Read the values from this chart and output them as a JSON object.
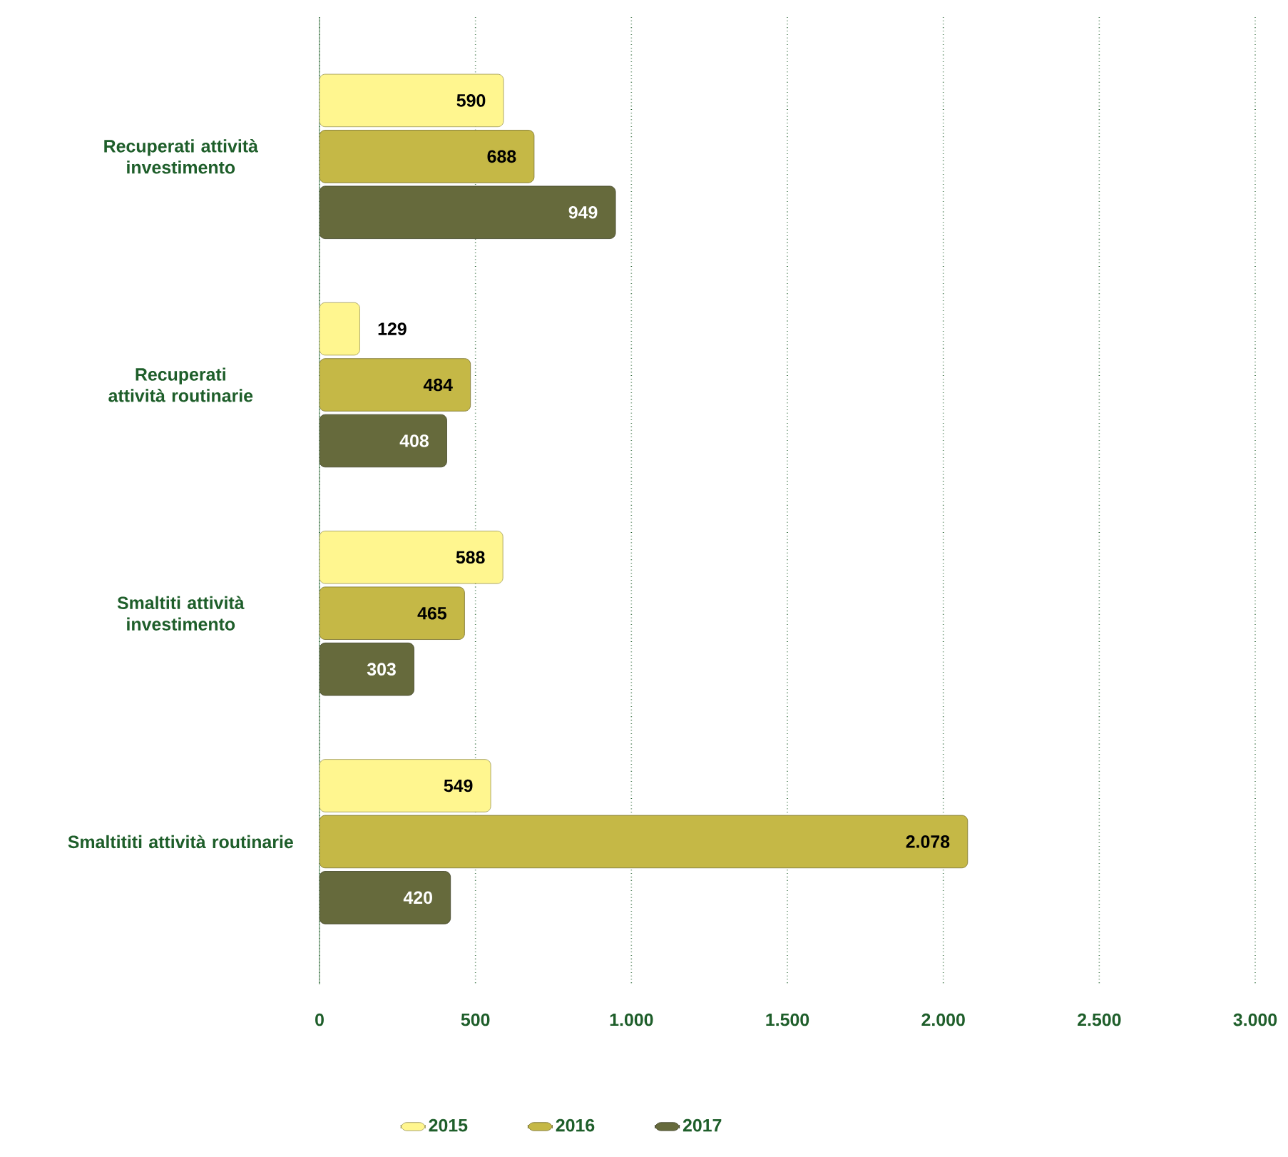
{
  "chart_data": {
    "type": "bar",
    "orientation": "horizontal",
    "categories": [
      "Recuperati attività investimento",
      "Recuperati attività routinarie",
      "Smaltiti attività investimento",
      "Smaltititi attività routinarie"
    ],
    "series": [
      {
        "name": "2015",
        "color": "#fff68f",
        "values": [
          590,
          129,
          588,
          549
        ],
        "value_labels": [
          "590",
          "129",
          "588",
          "549"
        ]
      },
      {
        "name": "2016",
        "color": "#c5b846",
        "values": [
          688,
          484,
          465,
          2078
        ],
        "value_labels": [
          "688",
          "484",
          "465",
          "2.078"
        ]
      },
      {
        "name": "2017",
        "color": "#666a3c",
        "values": [
          949,
          408,
          303,
          420
        ],
        "value_labels": [
          "949",
          "408",
          "303",
          "420"
        ]
      }
    ],
    "xlim": [
      0,
      3000
    ],
    "xticks": [
      0,
      500,
      {
        "value": 1000,
        "label": "1.000"
      },
      {
        "value": 1500,
        "label": "1.500"
      },
      {
        "value": 2000,
        "label": "2.000"
      },
      {
        "value": 2500,
        "label": "2.500"
      },
      {
        "value": 3000,
        "label": "3.000"
      }
    ],
    "grid": "x",
    "legend": "bottom"
  }
}
